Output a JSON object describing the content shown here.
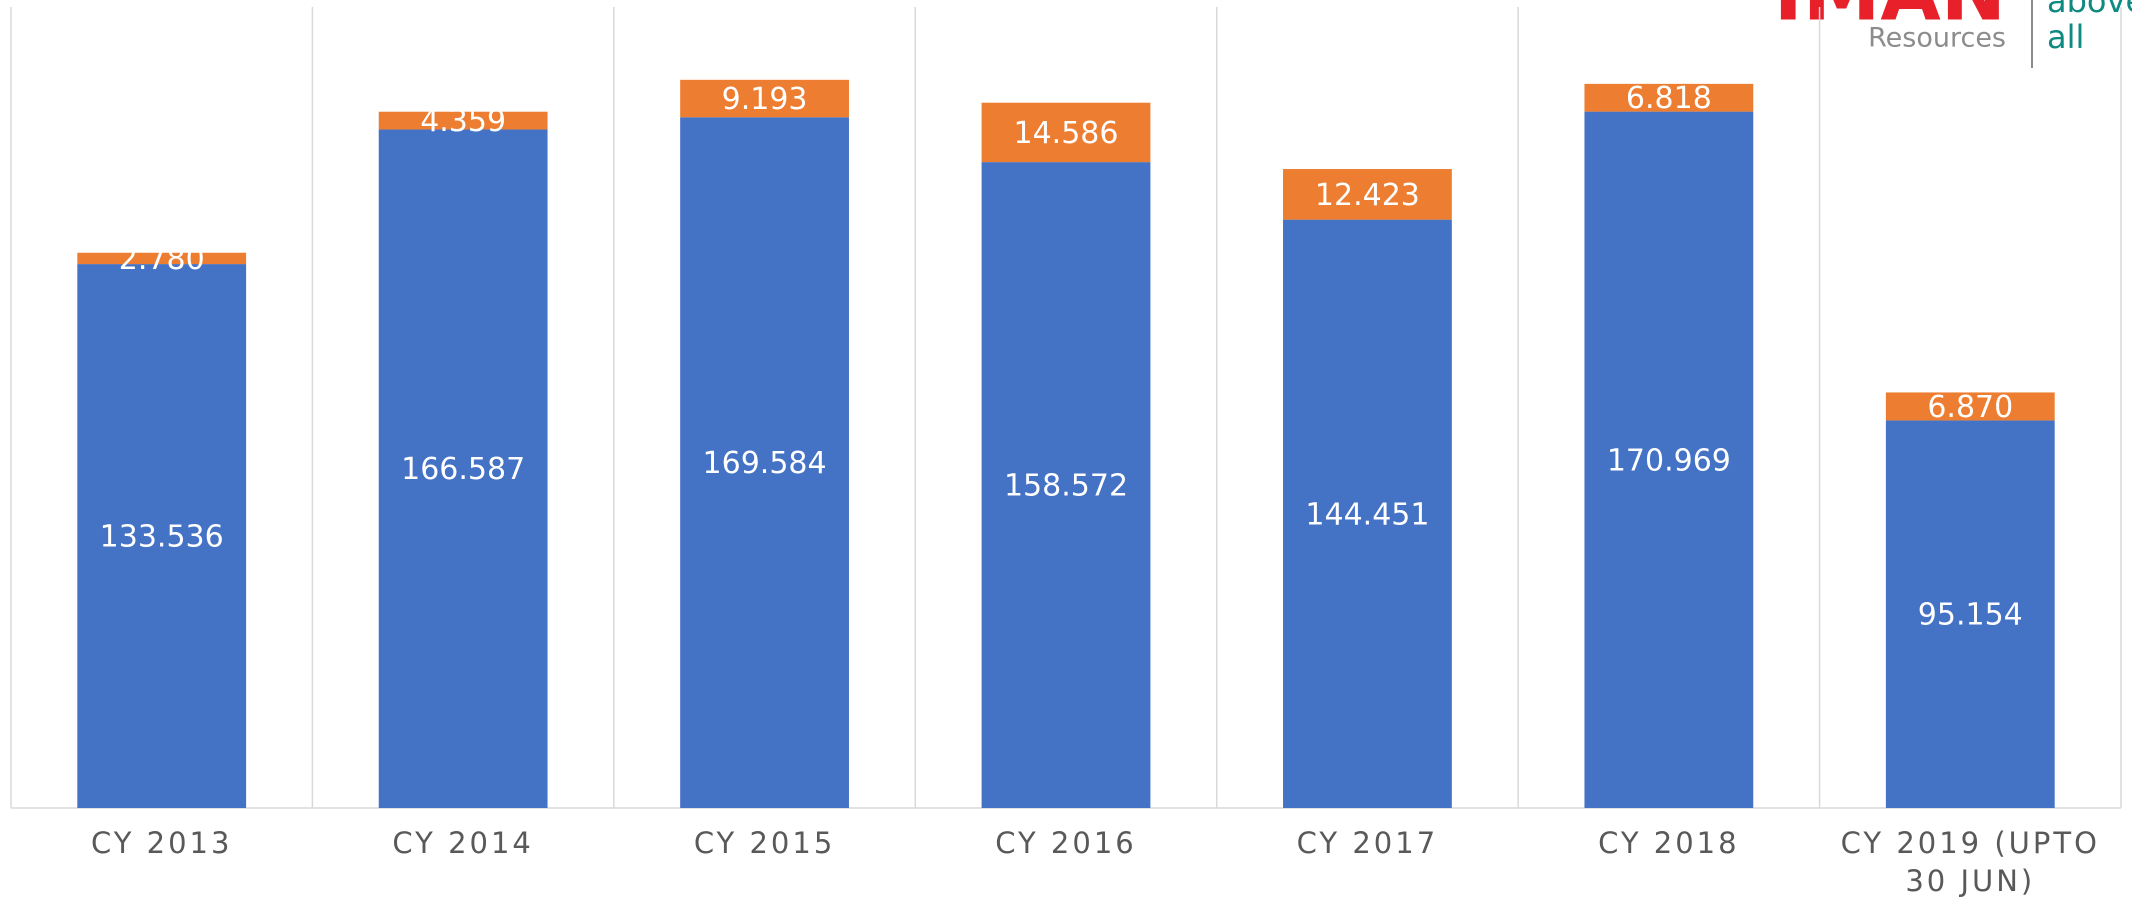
{
  "chart_data": {
    "type": "stacked_bar",
    "categories": [
      "CY 2013",
      "CY 2014",
      "CY 2015",
      "CY 2016",
      "CY 2017",
      "CY 2018",
      "CY 2019 (UPTO 30 JUN)"
    ],
    "series": [
      {
        "color": "#4472c4",
        "values": [
          133.536,
          166.587,
          169.584,
          158.572,
          144.451,
          170.969,
          95.154
        ],
        "value_labels": [
          "133.536",
          "166.587",
          "169.584",
          "158.572",
          "144.451",
          "170.969",
          "95.154"
        ]
      },
      {
        "color": "#ed7d31",
        "values": [
          2.78,
          4.359,
          9.193,
          14.586,
          12.423,
          6.818,
          6.87
        ],
        "value_labels": [
          "2.780",
          "4.359",
          "9.193",
          "14.586",
          "12.423",
          "6.818",
          "6.870"
        ]
      }
    ]
  },
  "logo": {
    "brand": "IMAN",
    "name": "Resources",
    "tagline": [
      "above",
      "all"
    ]
  }
}
